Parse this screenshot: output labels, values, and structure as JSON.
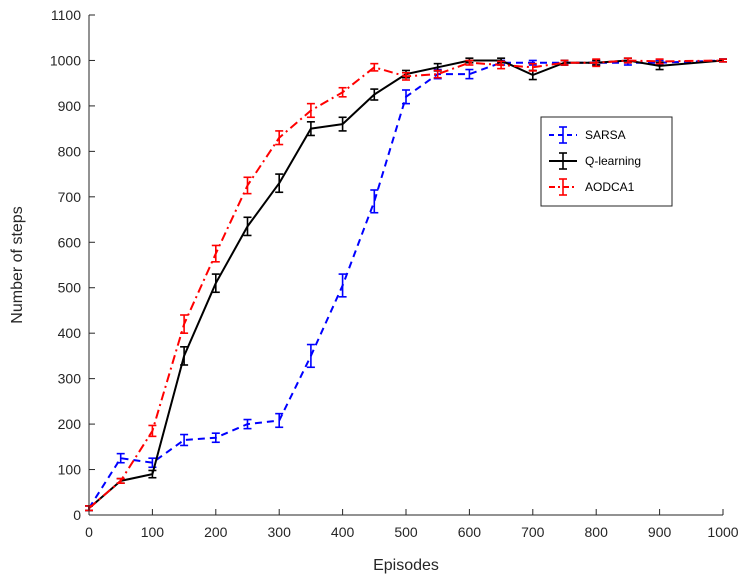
{
  "chart_data": {
    "type": "line",
    "xlabel": "Episodes",
    "ylabel": "Number of steps",
    "xlim": [
      0,
      1000
    ],
    "ylim": [
      0,
      1100
    ],
    "xticks": [
      0,
      100,
      200,
      300,
      400,
      500,
      600,
      700,
      800,
      900,
      1000
    ],
    "yticks": [
      0,
      100,
      200,
      300,
      400,
      500,
      600,
      700,
      800,
      900,
      1000,
      1100
    ],
    "grid": false,
    "legend_position": "right",
    "x": [
      0,
      50,
      100,
      150,
      200,
      250,
      300,
      350,
      400,
      450,
      500,
      550,
      600,
      650,
      700,
      750,
      800,
      850,
      900,
      1000
    ],
    "series": [
      {
        "name": "SARSA",
        "color": "#0000ff",
        "line_style": "dashed",
        "values": [
          15,
          125,
          115,
          165,
          170,
          200,
          208,
          350,
          505,
          690,
          920,
          970,
          970,
          995,
          995,
          995,
          995,
          995,
          995,
          1000
        ],
        "errors": [
          5,
          10,
          10,
          12,
          10,
          10,
          15,
          25,
          25,
          25,
          15,
          10,
          10,
          5,
          5,
          5,
          5,
          5,
          5,
          3
        ]
      },
      {
        "name": "Q-learning",
        "color": "#000000",
        "line_style": "solid",
        "values": [
          15,
          75,
          90,
          350,
          510,
          635,
          730,
          850,
          860,
          925,
          970,
          985,
          1000,
          1000,
          968,
          995,
          995,
          1000,
          988,
          1000
        ],
        "errors": [
          5,
          5,
          8,
          20,
          20,
          20,
          20,
          15,
          15,
          12,
          8,
          8,
          5,
          5,
          10,
          5,
          5,
          5,
          8,
          3
        ]
      },
      {
        "name": "AODCA1",
        "color": "#ff0000",
        "line_style": "dashdot",
        "values": [
          15,
          75,
          185,
          420,
          575,
          725,
          830,
          890,
          930,
          985,
          965,
          970,
          995,
          990,
          985,
          995,
          995,
          1000,
          998,
          1000
        ],
        "errors": [
          5,
          5,
          12,
          20,
          18,
          18,
          15,
          15,
          10,
          8,
          8,
          8,
          5,
          8,
          8,
          5,
          8,
          5,
          5,
          3
        ]
      }
    ]
  }
}
